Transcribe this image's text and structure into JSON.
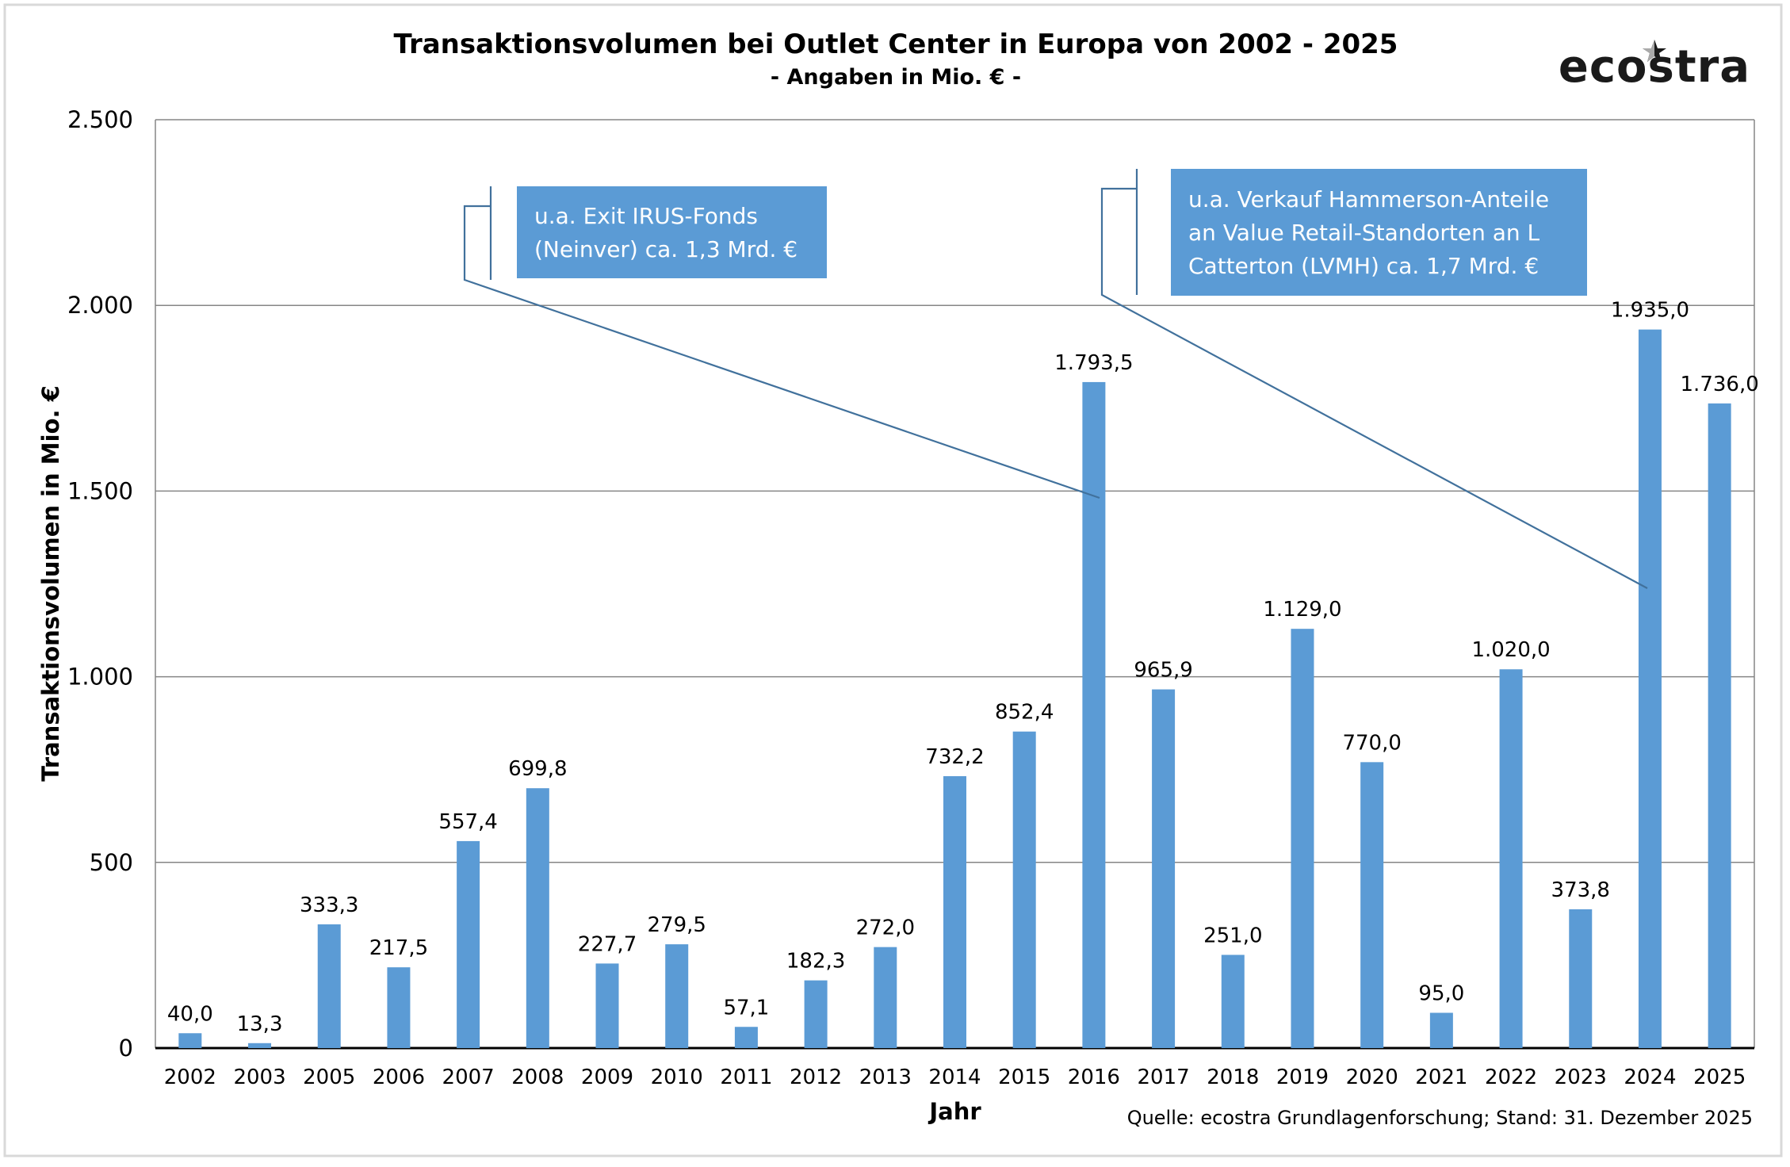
{
  "chart_data": {
    "type": "bar",
    "title": "Transaktionsvolumen bei Outlet Center in Europa von 2002 - 2025",
    "subtitle": "- Angaben in Mio. € -",
    "xlabel": "Jahr",
    "ylabel": "Transaktionsvolumen in Mio. €",
    "ylim": [
      0,
      2500
    ],
    "yticks": [
      0,
      500,
      1000,
      1500,
      2000,
      2500
    ],
    "ytick_labels": [
      "0",
      "500",
      "1.000",
      "1.500",
      "2.000",
      "2.500"
    ],
    "grid": true,
    "bar_color": "#5b9bd5",
    "categories": [
      "2002",
      "2003",
      "2005",
      "2006",
      "2007",
      "2008",
      "2009",
      "2010",
      "2011",
      "2012",
      "2013",
      "2014",
      "2015",
      "2016",
      "2017",
      "2018",
      "2019",
      "2020",
      "2021",
      "2022",
      "2023",
      "2024",
      "2025"
    ],
    "values": [
      40.0,
      13.3,
      333.3,
      217.5,
      557.4,
      699.8,
      227.7,
      279.5,
      57.1,
      182.3,
      272.0,
      732.2,
      852.4,
      1793.5,
      965.9,
      251.0,
      1129.0,
      770.0,
      95.0,
      1020.0,
      373.8,
      1935.0,
      1736.0
    ],
    "data_labels": [
      "40,0",
      "13,3",
      "333,3",
      "217,5",
      "557,4",
      "699,8",
      "227,7",
      "279,5",
      "57,1",
      "182,3",
      "272,0",
      "732,2",
      "852,4",
      "1.793,5",
      "965,9",
      "251,0",
      "1.129,0",
      "770,0",
      "95,0",
      "1.020,0",
      "373,8",
      "1.935,0",
      "1.736,0"
    ],
    "annotations": [
      {
        "lines": [
          "u.a. Exit IRUS-Fonds",
          "(Neinver) ca. 1,3 Mrd. €"
        ],
        "target": "2016"
      },
      {
        "lines": [
          "u.a. Verkauf Hammerson-Anteile",
          "an Value Retail-Standorten an L",
          "Catterton (LVMH) ca. 1,7 Mrd. €"
        ],
        "target": "2024"
      }
    ],
    "source": "Quelle: ecostra Grundlagenforschung; Stand: 31. Dezember 2025"
  },
  "logo": {
    "text": "ecostra"
  }
}
